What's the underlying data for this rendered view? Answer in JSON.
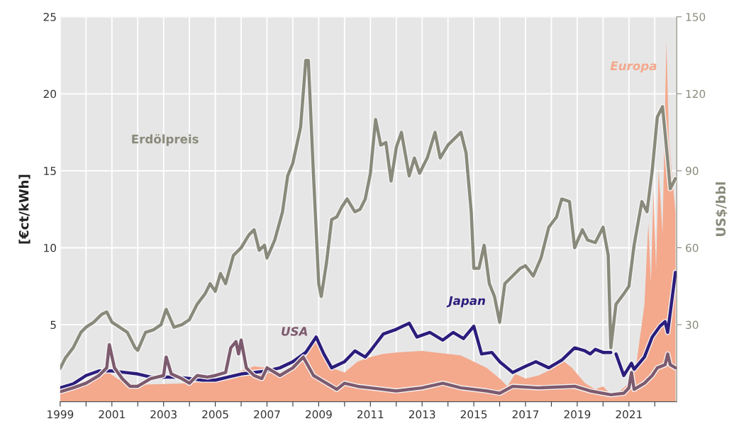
{
  "chart_data": {
    "type": "line",
    "ylabel": "[€ct/kWh]",
    "y2label": "US$/bbl",
    "xlim": [
      1999,
      2022.85
    ],
    "xticks": [
      1999,
      {
        "value": 2000,
        "label": null
      },
      2001,
      {
        "value": 2002,
        "label": null
      },
      2003,
      {
        "value": 2004,
        "label": null
      },
      2005,
      {
        "value": 2006,
        "label": null
      },
      2007,
      {
        "value": 2008,
        "label": null
      },
      2009,
      {
        "value": 2010,
        "label": null
      },
      2011,
      {
        "value": 2012,
        "label": null
      },
      2013,
      {
        "value": 2014,
        "label": null
      },
      2015,
      {
        "value": 2016,
        "label": null
      },
      2017,
      {
        "value": 2018,
        "label": null
      },
      2019,
      {
        "value": 2020,
        "label": null
      },
      2021,
      {
        "value": 2022,
        "label": null
      }
    ],
    "ylim": [
      0,
      25
    ],
    "yticks": [
      5,
      10,
      15,
      20,
      25
    ],
    "y2lim": [
      0,
      150
    ],
    "y2ticks": [
      30,
      60,
      90,
      120,
      150
    ],
    "grid": true,
    "legend": false,
    "series": [
      {
        "name": "Europa",
        "type": "area",
        "color": "#f4a88c",
        "x": [
          1999.0,
          1999.5,
          2000.0,
          2000.5,
          2000.8,
          2001.2,
          2001.6,
          2002.0,
          2003.0,
          2004.0,
          2005.0,
          2006.0,
          2006.5,
          2007.0,
          2007.5,
          2008.0,
          2008.5,
          2008.9,
          2009.5,
          2010.0,
          2010.5,
          2011.0,
          2011.5,
          2012.0,
          2013.0,
          2013.5,
          2014.0,
          2014.5,
          2015.0,
          2015.5,
          2016.0,
          2016.3,
          2016.6,
          2017.0,
          2017.5,
          2018.0,
          2018.5,
          2018.8,
          2019.3,
          2019.7,
          2020.0,
          2020.4,
          2020.8,
          2021.0,
          2021.3,
          2021.6,
          2021.75,
          2021.85,
          2021.95,
          2022.05,
          2022.15,
          2022.3,
          2022.45,
          2022.55,
          2022.8
        ],
        "values": [
          0.55,
          0.8,
          1.2,
          1.7,
          2.0,
          1.5,
          1.2,
          1.1,
          1.15,
          1.2,
          1.4,
          2.0,
          2.3,
          2.2,
          1.8,
          2.2,
          2.9,
          4.0,
          2.2,
          1.9,
          2.6,
          2.9,
          3.1,
          3.2,
          3.3,
          3.2,
          3.1,
          3.0,
          2.6,
          2.2,
          1.5,
          1.0,
          1.8,
          1.5,
          1.7,
          2.1,
          2.6,
          2.2,
          1.2,
          0.8,
          1.0,
          0.3,
          0.9,
          1.2,
          2.6,
          6.3,
          11.6,
          7.7,
          13.7,
          8.6,
          15.1,
          10.9,
          23.4,
          16.9,
          12.3
        ]
      },
      {
        "name": "Japan",
        "color": "#2b1d7c",
        "x": [
          1999.0,
          1999.5,
          2000.0,
          2000.5,
          2001.0,
          2001.5,
          2002.0,
          2002.5,
          2003.0,
          2003.5,
          2004.0,
          2004.5,
          2005.0,
          2005.5,
          2006.0,
          2006.5,
          2007.0,
          2007.5,
          2008.0,
          2008.5,
          2008.9,
          2009.2,
          2009.5,
          2010.0,
          2010.4,
          2010.8,
          2011.0,
          2011.5,
          2012.0,
          2012.5,
          2012.8,
          2013.3,
          2013.8,
          2014.2,
          2014.6,
          2015.0,
          2015.3,
          2015.7,
          2016.0,
          2016.5,
          2017.0,
          2017.4,
          2017.9,
          2018.4,
          2018.9,
          2019.3,
          2019.5,
          2019.7,
          2020.0,
          2020.3,
          2020.4,
          2020.5,
          2020.8,
          2021.1,
          2021.2,
          2021.6,
          2021.9,
          2022.2,
          2022.4,
          2022.5,
          2022.8
        ],
        "values": [
          0.9,
          1.15,
          1.7,
          2.0,
          2.0,
          1.9,
          1.8,
          1.6,
          1.6,
          1.6,
          1.5,
          1.4,
          1.4,
          1.6,
          1.8,
          1.9,
          2.0,
          2.2,
          2.6,
          3.2,
          4.2,
          3.1,
          2.2,
          2.6,
          3.3,
          2.9,
          3.3,
          4.4,
          4.7,
          5.1,
          4.2,
          4.5,
          4.0,
          4.5,
          4.1,
          4.9,
          3.1,
          3.2,
          2.6,
          1.9,
          2.3,
          2.6,
          2.2,
          2.7,
          3.5,
          3.3,
          3.1,
          3.4,
          3.2,
          3.2,
          null,
          3.1,
          1.7,
          2.5,
          2.1,
          2.9,
          4.2,
          4.9,
          5.2,
          4.5,
          8.4
        ]
      },
      {
        "name": "USA",
        "color": "#7d5a6e",
        "x": [
          1999.0,
          1999.5,
          2000.0,
          2000.5,
          2000.8,
          2000.9,
          2001.1,
          2001.4,
          2001.7,
          2002.0,
          2002.5,
          2003.0,
          2003.1,
          2003.3,
          2003.7,
          2004.0,
          2004.3,
          2004.7,
          2005.0,
          2005.4,
          2005.6,
          2005.8,
          2005.9,
          2006.0,
          2006.2,
          2006.5,
          2006.8,
          2007.0,
          2007.5,
          2008.0,
          2008.4,
          2008.8,
          2009.3,
          2009.7,
          2010.0,
          2010.5,
          2011.0,
          2012.0,
          2013.0,
          2013.8,
          2014.5,
          2015.5,
          2016.0,
          2016.5,
          2017.5,
          2018.9,
          2019.5,
          2020.3,
          2020.8,
          2021.0,
          2021.1,
          2021.2,
          2021.6,
          2021.9,
          2022.1,
          2022.4,
          2022.5,
          2022.6,
          2022.8
        ],
        "values": [
          0.65,
          0.9,
          1.2,
          1.7,
          2.2,
          3.7,
          2.2,
          1.5,
          1.0,
          1.0,
          1.5,
          1.7,
          2.9,
          1.8,
          1.5,
          1.2,
          1.7,
          1.6,
          1.7,
          1.9,
          3.5,
          3.9,
          3.1,
          4.0,
          2.2,
          1.7,
          1.5,
          2.2,
          1.7,
          2.2,
          2.9,
          1.7,
          1.2,
          0.8,
          1.2,
          1.0,
          0.9,
          0.7,
          0.9,
          1.2,
          0.9,
          0.7,
          0.55,
          1.0,
          0.9,
          1.0,
          0.7,
          0.45,
          0.55,
          0.9,
          1.9,
          0.8,
          1.2,
          1.7,
          2.2,
          2.4,
          3.1,
          2.4,
          2.2
        ]
      },
      {
        "name": "Erdölpreis",
        "axis": "y2",
        "color": "#8a8a7c",
        "x": [
          1999.0,
          1999.2,
          1999.5,
          1999.8,
          2000.0,
          2000.3,
          2000.6,
          2000.8,
          2001.0,
          2001.3,
          2001.6,
          2001.9,
          2002.0,
          2002.3,
          2002.6,
          2002.9,
          2003.1,
          2003.4,
          2003.7,
          2004.0,
          2004.3,
          2004.6,
          2004.8,
          2005.0,
          2005.2,
          2005.4,
          2005.7,
          2005.9,
          2006.0,
          2006.3,
          2006.5,
          2006.7,
          2006.9,
          2007.0,
          2007.3,
          2007.6,
          2007.8,
          2008.0,
          2008.3,
          2008.5,
          2008.6,
          2008.8,
          2009.0,
          2009.1,
          2009.3,
          2009.5,
          2009.7,
          2009.9,
          2010.1,
          2010.4,
          2010.6,
          2010.8,
          2011.0,
          2011.2,
          2011.4,
          2011.6,
          2011.8,
          2012.0,
          2012.2,
          2012.5,
          2012.7,
          2012.9,
          2013.2,
          2013.5,
          2013.7,
          2014.0,
          2014.5,
          2014.7,
          2014.9,
          2015.0,
          2015.2,
          2015.4,
          2015.6,
          2015.8,
          2016.0,
          2016.2,
          2016.5,
          2016.8,
          2017.0,
          2017.3,
          2017.6,
          2017.9,
          2018.2,
          2018.4,
          2018.7,
          2018.9,
          2019.2,
          2019.4,
          2019.7,
          2020.0,
          2020.2,
          2020.3,
          2020.5,
          2020.8,
          2021.0,
          2021.2,
          2021.5,
          2021.7,
          2021.9,
          2022.1,
          2022.3,
          2022.5,
          2022.6,
          2022.8
        ],
        "values": [
          13,
          17,
          21,
          27,
          29,
          31,
          34,
          35,
          31,
          29,
          27,
          21,
          20,
          27,
          28,
          30,
          36,
          29,
          30,
          32,
          38,
          42,
          46,
          43,
          50,
          46,
          57,
          59,
          60,
          65,
          67,
          59,
          61,
          56,
          63,
          74,
          88,
          93,
          107,
          133,
          133,
          88,
          46,
          41,
          54,
          71,
          72,
          76,
          79,
          74,
          75,
          79,
          89,
          110,
          100,
          101,
          86,
          99,
          105,
          88,
          95,
          89,
          95,
          105,
          95,
          100,
          105,
          97,
          74,
          52,
          52,
          61,
          46,
          41,
          31,
          46,
          49,
          52,
          53,
          49,
          56,
          68,
          72,
          79,
          78,
          60,
          67,
          63,
          62,
          68,
          57,
          21,
          38,
          42,
          45,
          61,
          78,
          74,
          90,
          111,
          115,
          94,
          83,
          87
        ]
      }
    ]
  }
}
